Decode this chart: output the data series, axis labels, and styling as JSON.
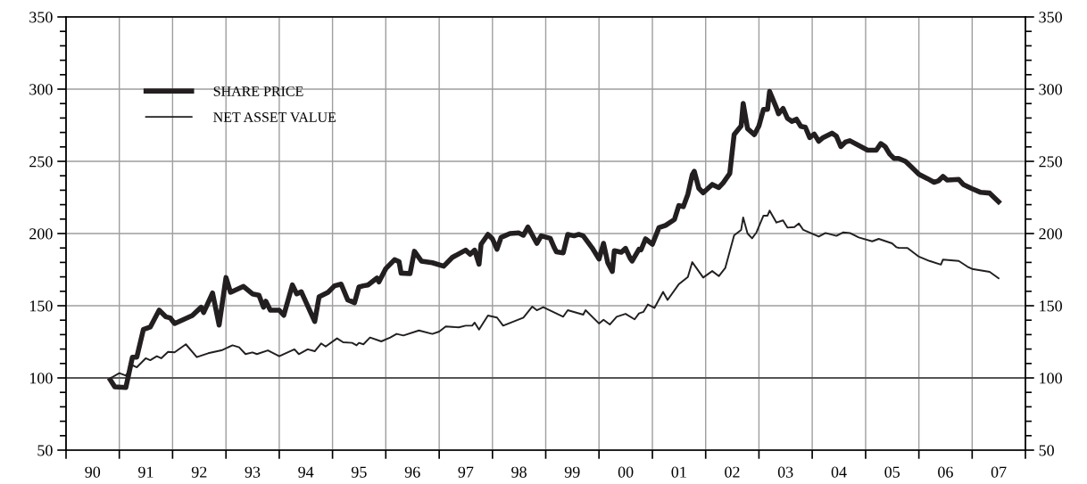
{
  "chart_data": {
    "type": "line",
    "xlim": [
      "1990-01-01",
      "2008-01-01"
    ],
    "xticks": [
      {
        "value": "1990-01-01",
        "label": null
      },
      {
        "value": "1990-07-02",
        "label": "90"
      },
      {
        "value": "1991-01-01",
        "label": null
      },
      {
        "value": "1991-07-02",
        "label": "91"
      },
      {
        "value": "1992-01-01",
        "label": null
      },
      {
        "value": "1992-07-02",
        "label": "92"
      },
      {
        "value": "1993-01-01",
        "label": null
      },
      {
        "value": "1993-07-02",
        "label": "93"
      },
      {
        "value": "1994-01-01",
        "label": null
      },
      {
        "value": "1994-07-02",
        "label": "94"
      },
      {
        "value": "1995-01-01",
        "label": null
      },
      {
        "value": "1995-07-02",
        "label": "95"
      },
      {
        "value": "1996-01-01",
        "label": null
      },
      {
        "value": "1996-07-02",
        "label": "96"
      },
      {
        "value": "1997-01-01",
        "label": null
      },
      {
        "value": "1997-07-02",
        "label": "97"
      },
      {
        "value": "1998-01-01",
        "label": null
      },
      {
        "value": "1998-07-02",
        "label": "98"
      },
      {
        "value": "1999-01-01",
        "label": null
      },
      {
        "value": "1999-07-02",
        "label": "99"
      },
      {
        "value": "2000-01-01",
        "label": null
      },
      {
        "value": "2000-07-02",
        "label": "00"
      },
      {
        "value": "2001-01-01",
        "label": null
      },
      {
        "value": "2001-07-02",
        "label": "01"
      },
      {
        "value": "2002-01-01",
        "label": null
      },
      {
        "value": "2002-07-02",
        "label": "02"
      },
      {
        "value": "2003-01-01",
        "label": null
      },
      {
        "value": "2003-07-02",
        "label": "03"
      },
      {
        "value": "2004-01-01",
        "label": null
      },
      {
        "value": "2004-07-02",
        "label": "04"
      },
      {
        "value": "2005-01-01",
        "label": null
      },
      {
        "value": "2005-07-02",
        "label": "05"
      },
      {
        "value": "2006-01-01",
        "label": null
      },
      {
        "value": "2006-07-02",
        "label": "06"
      },
      {
        "value": "2007-01-01",
        "label": null
      },
      {
        "value": "2007-07-02",
        "label": "07"
      },
      {
        "value": "2008-01-01",
        "label": null
      }
    ],
    "ylim": [
      50,
      350
    ],
    "yticks": [
      50,
      {
        "value": 60,
        "label": null
      },
      {
        "value": 70,
        "label": null
      },
      {
        "value": 80,
        "label": null
      },
      {
        "value": 90,
        "label": null
      },
      100,
      {
        "value": 110,
        "label": null
      },
      {
        "value": 120,
        "label": null
      },
      {
        "value": 130,
        "label": null
      },
      {
        "value": 140,
        "label": null
      },
      150,
      {
        "value": 160,
        "label": null
      },
      {
        "value": 170,
        "label": null
      },
      {
        "value": 180,
        "label": null
      },
      {
        "value": 190,
        "label": null
      },
      200,
      {
        "value": 210,
        "label": null
      },
      {
        "value": 220,
        "label": null
      },
      {
        "value": 230,
        "label": null
      },
      {
        "value": 240,
        "label": null
      },
      250,
      {
        "value": 260,
        "label": null
      },
      {
        "value": 270,
        "label": null
      },
      {
        "value": 280,
        "label": null
      },
      {
        "value": 290,
        "label": null
      },
      300,
      {
        "value": 310,
        "label": null
      },
      {
        "value": 320,
        "label": null
      },
      {
        "value": 330,
        "label": null
      },
      {
        "value": 340,
        "label": null
      },
      350
    ],
    "y2lim": [
      50,
      350
    ],
    "y2ticks": [
      50,
      {
        "value": 60,
        "label": null
      },
      {
        "value": 70,
        "label": null
      },
      {
        "value": 80,
        "label": null
      },
      {
        "value": 90,
        "label": null
      },
      100,
      {
        "value": 110,
        "label": null
      },
      {
        "value": 120,
        "label": null
      },
      {
        "value": 130,
        "label": null
      },
      {
        "value": 140,
        "label": null
      },
      150,
      {
        "value": 160,
        "label": null
      },
      {
        "value": 170,
        "label": null
      },
      {
        "value": 180,
        "label": null
      },
      {
        "value": 190,
        "label": null
      },
      200,
      {
        "value": 210,
        "label": null
      },
      {
        "value": 220,
        "label": null
      },
      {
        "value": 230,
        "label": null
      },
      {
        "value": 240,
        "label": null
      },
      250,
      {
        "value": 260,
        "label": null
      },
      {
        "value": 270,
        "label": null
      },
      {
        "value": 280,
        "label": null
      },
      {
        "value": 290,
        "label": null
      },
      300,
      {
        "value": 310,
        "label": null
      },
      {
        "value": 320,
        "label": null
      },
      {
        "value": 330,
        "label": null
      },
      {
        "value": 340,
        "label": null
      },
      350
    ],
    "grid": true,
    "legend": "top left",
    "marker": "none",
    "line_style": "solid",
    "ref_lines": [
      {
        "axis": "y",
        "value": 100,
        "label": null,
        "color": "#555555"
      }
    ],
    "series": [
      {
        "name": "SHARE PRICE",
        "color": "#231f20",
        "x": [
          "1990-11-01",
          "1990-12-01",
          "1991-02-15",
          "1991-04-01",
          "1991-05-01",
          "1991-06-15",
          "1991-08-01",
          "1991-10-01",
          "1991-11-15",
          "1991-12-15",
          "1992-01-15",
          "1992-05-15",
          "1992-07-15",
          "1992-08-01",
          "1992-10-01",
          "1992-11-15",
          "1993-01-01",
          "1993-02-01",
          "1993-05-01",
          "1993-07-01",
          "1993-08-15",
          "1993-09-15",
          "1993-10-01",
          "1993-11-01",
          "1994-01-01",
          "1994-02-01",
          "1994-04-01",
          "1994-05-01",
          "1994-06-01",
          "1994-09-01",
          "1994-10-01",
          "1994-12-01",
          "1995-01-15",
          "1995-03-01",
          "1995-04-15",
          "1995-06-01",
          "1995-07-01",
          "1995-08-01",
          "1995-09-01",
          "1995-11-01",
          "1995-11-15",
          "1996-01-01",
          "1996-03-01",
          "1996-04-01",
          "1996-04-15",
          "1996-06-15",
          "1996-07-15",
          "1996-09-01",
          "1996-11-15",
          "1997-02-01",
          "1997-04-01",
          "1997-07-01",
          "1997-08-01",
          "1997-09-01",
          "1997-10-01",
          "1997-10-15",
          "1997-12-01",
          "1998-01-01",
          "1998-02-01",
          "1998-03-01",
          "1998-05-01",
          "1998-07-01",
          "1998-08-01",
          "1998-09-01",
          "1998-11-01",
          "1998-12-01",
          "1999-02-01",
          "1999-03-01",
          "1999-03-15",
          "1999-05-01",
          "1999-06-01",
          "1999-07-15",
          "1999-08-15",
          "1999-09-15",
          "1999-11-15",
          "2000-01-01",
          "2000-02-01",
          "2000-03-01",
          "2000-04-01",
          "2000-04-15",
          "2000-06-01",
          "2000-07-01",
          "2000-08-01",
          "2000-08-15",
          "2000-10-01",
          "2000-10-15",
          "2000-11-15",
          "2001-01-01",
          "2001-02-15",
          "2001-04-01",
          "2001-06-01",
          "2001-07-01",
          "2001-08-01",
          "2001-09-01",
          "2001-10-01",
          "2001-10-15",
          "2001-11-15",
          "2001-12-15",
          "2002-02-15",
          "2002-04-01",
          "2002-05-01",
          "2002-06-15",
          "2002-07-15",
          "2002-09-01",
          "2002-09-15",
          "2002-10-15",
          "2002-12-01",
          "2003-01-01",
          "2003-02-01",
          "2003-03-01",
          "2003-03-15",
          "2003-05-01",
          "2003-05-15",
          "2003-06-15",
          "2003-07-15",
          "2003-08-15",
          "2003-09-15",
          "2003-10-15",
          "2003-11-15",
          "2003-12-15",
          "2004-01-15",
          "2004-02-15",
          "2004-03-15",
          "2004-05-15",
          "2004-06-15",
          "2004-07-15",
          "2004-08-15",
          "2004-09-15",
          "2005-01-15",
          "2005-03-15",
          "2005-04-15",
          "2005-05-15",
          "2005-06-15",
          "2005-07-15",
          "2005-08-15",
          "2005-10-01",
          "2005-11-01",
          "2006-01-01",
          "2006-03-01",
          "2006-04-15",
          "2006-05-15",
          "2006-06-15",
          "2006-07-15",
          "2006-10-01",
          "2006-11-01",
          "2007-01-01",
          "2007-03-01",
          "2007-05-01",
          "2007-07-01"
        ],
        "values": [
          98.6,
          93.8,
          93.4,
          114.4,
          114.4,
          133.5,
          135.2,
          146.9,
          142.4,
          141.6,
          137.7,
          143.2,
          149,
          145.3,
          158.8,
          136.6,
          169.5,
          159.3,
          163.4,
          158.2,
          157.2,
          149,
          153.1,
          146.9,
          146.9,
          143.4,
          164.4,
          158.2,
          159.7,
          139.1,
          156.2,
          159.3,
          163.8,
          165,
          154.1,
          152.1,
          163,
          163.8,
          164.4,
          169.1,
          166.5,
          175.7,
          181.9,
          180.5,
          172.6,
          172.2,
          187.7,
          180.9,
          179.8,
          177.4,
          183.5,
          188.5,
          185.6,
          188.5,
          178.8,
          192.6,
          199.4,
          196.3,
          189.1,
          197.3,
          200,
          200.4,
          198.8,
          204.5,
          193.2,
          198.4,
          196.7,
          190.1,
          187.4,
          186.6,
          199.4,
          198.4,
          199.4,
          198.4,
          190.1,
          182.3,
          193.2,
          179.8,
          173.7,
          188.1,
          187,
          189.7,
          182.9,
          180.9,
          189.1,
          188.7,
          196.3,
          192.6,
          204.1,
          205.6,
          209.7,
          219.4,
          218.6,
          227.2,
          240.6,
          243.1,
          231.3,
          228.2,
          234,
          231.8,
          235.1,
          241.6,
          268.5,
          274.6,
          290.1,
          272.6,
          268.5,
          274.6,
          286,
          286,
          298.4,
          287,
          282.9,
          286.6,
          279.8,
          277.7,
          279.2,
          274.2,
          273.6,
          266.4,
          268.9,
          263.9,
          266.4,
          269.5,
          267.4,
          260.2,
          263.3,
          264.3,
          257.7,
          257.7,
          262.3,
          260.2,
          255,
          252,
          252,
          250,
          247,
          241,
          238,
          235.5,
          236.5,
          239.5,
          237,
          237.5,
          234,
          231,
          228.5,
          228,
          222
        ]
      },
      {
        "name": "NET ASSET VALUE",
        "color": "#231f20",
        "x": [
          "1990-11-15",
          "1991-01-01",
          "1991-02-15",
          "1991-04-01",
          "1991-05-01",
          "1991-07-01",
          "1991-08-01",
          "1991-09-15",
          "1991-10-15",
          "1991-12-01",
          "1992-01-15",
          "1992-04-01",
          "1992-06-15",
          "1992-09-01",
          "1992-12-01",
          "1993-02-15",
          "1993-04-01",
          "1993-05-15",
          "1993-07-01",
          "1993-08-01",
          "1993-10-15",
          "1994-01-01",
          "1994-04-15",
          "1994-05-15",
          "1994-07-15",
          "1994-09-01",
          "1994-10-15",
          "1994-11-15",
          "1995-02-01",
          "1995-03-15",
          "1995-05-15",
          "1995-06-15",
          "1995-07-01",
          "1995-08-01",
          "1995-09-15",
          "1995-12-01",
          "1996-02-01",
          "1996-03-15",
          "1996-05-01",
          "1996-08-15",
          "1996-11-15",
          "1997-01-01",
          "1997-02-15",
          "1997-05-15",
          "1997-07-01",
          "1997-08-15",
          "1997-09-01",
          "1997-10-01",
          "1997-12-01",
          "1998-02-01",
          "1998-03-15",
          "1998-08-01",
          "1998-10-01",
          "1998-11-01",
          "1998-12-15",
          "1999-05-01",
          "1999-06-01",
          "1999-09-15",
          "1999-10-01",
          "2000-01-01",
          "2000-02-01",
          "2000-03-15",
          "2000-05-01",
          "2000-07-01",
          "2000-09-01",
          "2000-10-01",
          "2000-11-01",
          "2000-12-01",
          "2001-01-15",
          "2001-03-15",
          "2001-04-15",
          "2001-07-01",
          "2001-09-01",
          "2001-10-01",
          "2001-12-15",
          "2002-02-15",
          "2002-04-01",
          "2002-05-15",
          "2002-07-15",
          "2002-09-01",
          "2002-09-15",
          "2002-10-15",
          "2002-11-15",
          "2002-12-15",
          "2003-02-01",
          "2003-03-01",
          "2003-03-15",
          "2003-05-01",
          "2003-06-15",
          "2003-07-15",
          "2003-09-01",
          "2003-10-01",
          "2003-11-01",
          "2004-02-15",
          "2004-04-01",
          "2004-06-15",
          "2004-08-01",
          "2004-09-15",
          "2004-11-15",
          "2005-02-15",
          "2005-04-01",
          "2005-07-01",
          "2005-08-01",
          "2005-08-15",
          "2005-10-15",
          "2006-01-01",
          "2006-03-15",
          "2006-06-01",
          "2006-06-15",
          "2006-10-01",
          "2006-12-01",
          "2007-01-01",
          "2007-05-01",
          "2007-07-01"
        ],
        "values": [
          100.6,
          103.3,
          101.6,
          108.8,
          107.4,
          113.6,
          112.3,
          115,
          113.6,
          118.1,
          117.7,
          123.3,
          114.4,
          117.1,
          119.1,
          122.6,
          121.2,
          116.5,
          117.7,
          116.5,
          119.1,
          115,
          119.8,
          116.5,
          119.8,
          118.5,
          123.9,
          121.8,
          127.4,
          124.7,
          124.3,
          122.6,
          124.3,
          123.3,
          128,
          125.3,
          128,
          130.5,
          129.4,
          132.9,
          130.5,
          132.1,
          135.6,
          135,
          136.2,
          136.2,
          138.3,
          133.5,
          143.2,
          141.8,
          136.2,
          141.8,
          149.4,
          146.9,
          149,
          142.4,
          146.9,
          143.8,
          146.9,
          137.7,
          140.3,
          137,
          142.4,
          144.4,
          140.6,
          144.7,
          145.8,
          150.9,
          148.5,
          159.6,
          154,
          164.9,
          169.9,
          180.2,
          169.5,
          174,
          170.5,
          176.1,
          198.8,
          202.5,
          211.1,
          200,
          196.7,
          200.8,
          212.4,
          212.4,
          215.9,
          207.6,
          209.1,
          204.1,
          204.5,
          207,
          202.5,
          197.9,
          200.4,
          198.4,
          200.8,
          200.4,
          197.3,
          194.6,
          196.3,
          193.2,
          190.5,
          190.1,
          190,
          184,
          181,
          178.5,
          182,
          181,
          177,
          175.5,
          173.5,
          169
        ]
      }
    ]
  }
}
